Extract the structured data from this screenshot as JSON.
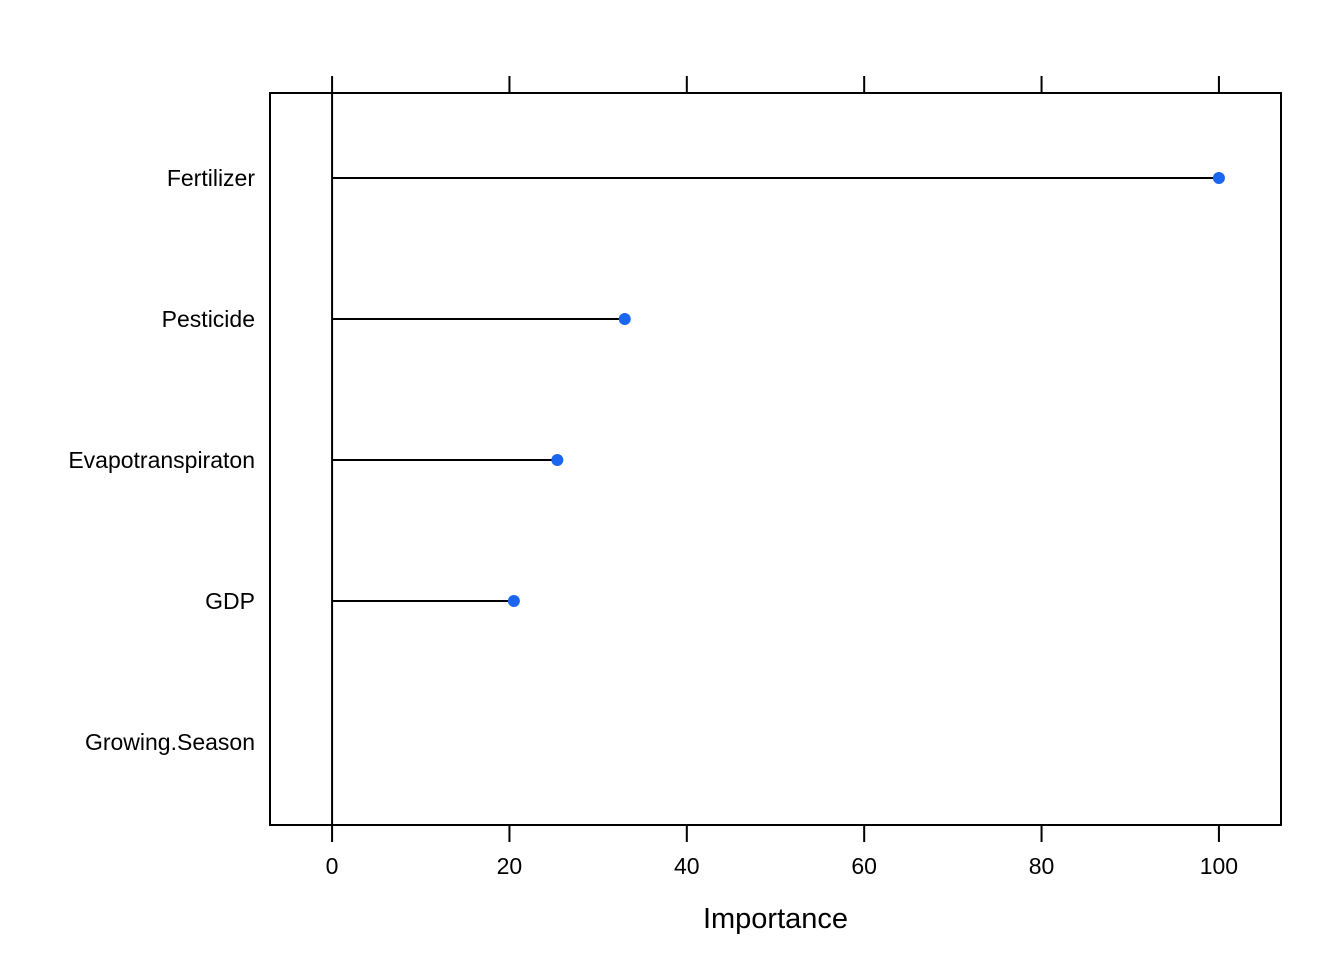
{
  "chart_data": {
    "type": "dot",
    "title": "",
    "xlabel": "Importance",
    "ylabel": "",
    "categories": [
      "Fertilizer",
      "Pesticide",
      "Evapotranspiraton",
      "GDP",
      "Growing.Season"
    ],
    "values": [
      100,
      33,
      25.4,
      20.5,
      0
    ],
    "xlim": [
      -7,
      107
    ],
    "xticks": [
      0,
      20,
      40,
      60,
      80,
      100
    ],
    "xtick_labels": [
      "0",
      "20",
      "40",
      "60",
      "80",
      "100"
    ],
    "grid": false,
    "legend": "none",
    "colors": {
      "point": "#1a66f0",
      "line": "#000000",
      "frame": "#000000"
    }
  }
}
